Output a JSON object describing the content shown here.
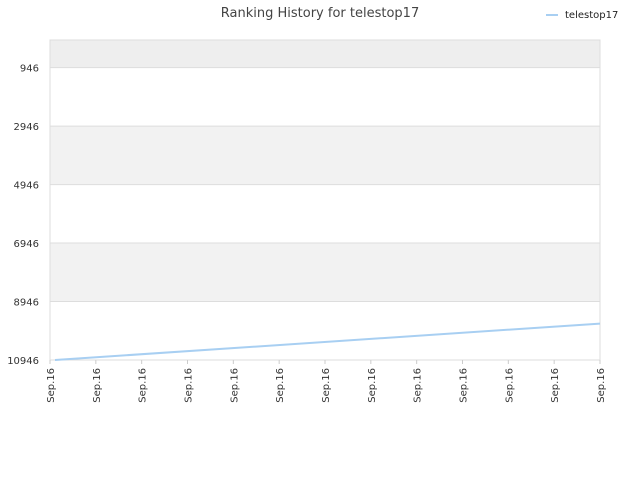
{
  "chart_data": {
    "type": "line",
    "title": "Ranking History for telestop17",
    "xlabel": "",
    "ylabel": "",
    "y_reversed": true,
    "ylim": [
      10946,
      0
    ],
    "y_ticks": [
      "946",
      "2946",
      "4946",
      "6946",
      "8946",
      "10946"
    ],
    "x_ticks": [
      "Sep.16",
      "Sep.16",
      "Sep.16",
      "Sep.16",
      "Sep.16",
      "Sep.16",
      "Sep.16",
      "Sep.16",
      "Sep.16",
      "Sep.16",
      "Sep.16",
      "Sep.16",
      "Sep.16"
    ],
    "grid": true,
    "legend_position": "top-right",
    "series": [
      {
        "name": "telestop17",
        "color": "#a8cff2",
        "x": [
          0,
          12
        ],
        "y": [
          10946,
          9700
        ]
      }
    ]
  }
}
